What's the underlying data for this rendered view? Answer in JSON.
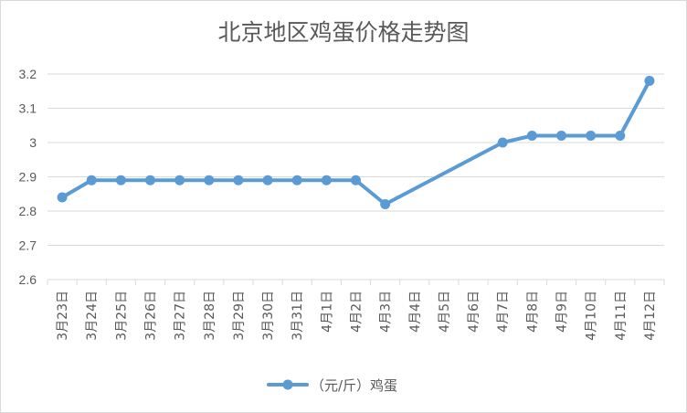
{
  "chart_data": {
    "type": "line",
    "title": "北京地区鸡蛋价格走势图",
    "xlabel": "",
    "ylabel": "",
    "categories": [
      "3月23日",
      "3月24日",
      "3月25日",
      "3月26日",
      "3月27日",
      "3月28日",
      "3月29日",
      "3月30日",
      "3月31日",
      "4月1日",
      "4月2日",
      "4月3日",
      "4月4日",
      "4月5日",
      "4月6日",
      "4月7日",
      "4月8日",
      "4月9日",
      "4月10日",
      "4月11日",
      "4月12日"
    ],
    "series": [
      {
        "name": "（元/斤）鸡蛋",
        "color": "#5b9bd5",
        "values": [
          2.84,
          2.89,
          2.89,
          2.89,
          2.89,
          2.89,
          2.89,
          2.89,
          2.89,
          2.89,
          2.89,
          2.82,
          null,
          null,
          null,
          3.0,
          3.02,
          3.02,
          3.02,
          3.02,
          3.18
        ]
      }
    ],
    "yticks": [
      "2.6",
      "2.7",
      "2.8",
      "2.9",
      "3",
      "3.1",
      "3.2"
    ],
    "ylim": [
      2.6,
      3.2
    ],
    "grid": true,
    "gap_handling": "connect",
    "legend_position": "bottom"
  },
  "colors": {
    "series": "#5b9bd5",
    "gridline": "#d9d9d9",
    "axis": "#d9d9d9",
    "text": "#595959"
  }
}
